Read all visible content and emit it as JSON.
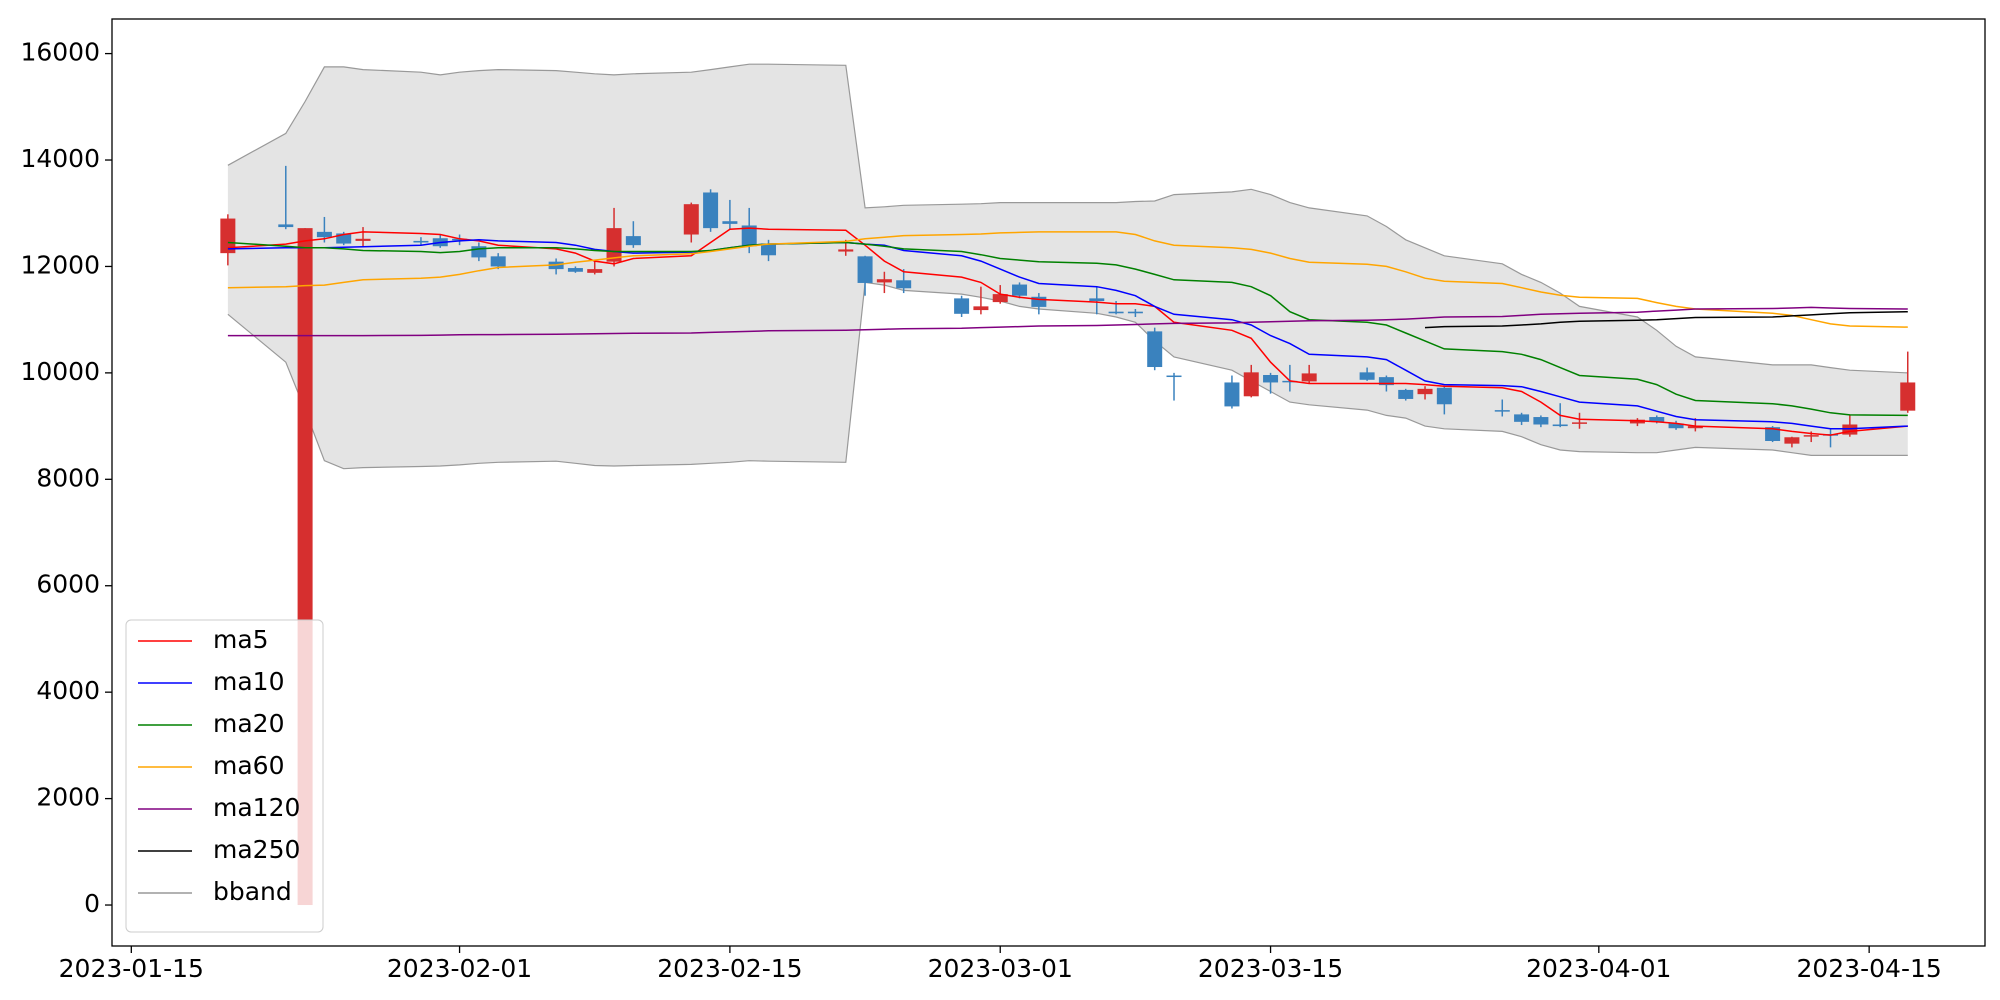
{
  "chart_data": {
    "type": "candlestick",
    "x": [
      "2023-01-20",
      "2023-01-23",
      "2023-01-24",
      "2023-01-25",
      "2023-01-26",
      "2023-01-27",
      "2023-01-30",
      "2023-01-31",
      "2023-02-01",
      "2023-02-02",
      "2023-02-03",
      "2023-02-06",
      "2023-02-07",
      "2023-02-08",
      "2023-02-09",
      "2023-02-10",
      "2023-02-13",
      "2023-02-14",
      "2023-02-15",
      "2023-02-16",
      "2023-02-17",
      "2023-02-21",
      "2023-02-22",
      "2023-02-23",
      "2023-02-24",
      "2023-02-27",
      "2023-02-28",
      "2023-03-01",
      "2023-03-02",
      "2023-03-03",
      "2023-03-06",
      "2023-03-07",
      "2023-03-08",
      "2023-03-09",
      "2023-03-10",
      "2023-03-13",
      "2023-03-14",
      "2023-03-15",
      "2023-03-16",
      "2023-03-17",
      "2023-03-20",
      "2023-03-21",
      "2023-03-22",
      "2023-03-23",
      "2023-03-24",
      "2023-03-27",
      "2023-03-28",
      "2023-03-29",
      "2023-03-30",
      "2023-03-31",
      "2023-04-03",
      "2023-04-04",
      "2023-04-05",
      "2023-04-06",
      "2023-04-10",
      "2023-04-11",
      "2023-04-12",
      "2023-04-13",
      "2023-04-14",
      "2023-04-17"
    ],
    "open": [
      12250,
      12790,
      0,
      12650,
      12620,
      12480,
      12480,
      12530,
      12520,
      12380,
      12190,
      12090,
      11970,
      11880,
      12090,
      12570,
      12600,
      13390,
      12850,
      12770,
      12430,
      12280,
      12190,
      11700,
      11740,
      11400,
      11180,
      11330,
      11660,
      11430,
      11400,
      11150,
      11150,
      10780,
      9950,
      9820,
      9560,
      9960,
      9850,
      9840,
      10010,
      9920,
      9680,
      9600,
      9720,
      9300,
      9220,
      9170,
      9030,
      9050,
      9050,
      9170,
      9050,
      8960,
      8980,
      8670,
      8810,
      8850,
      8840,
      9290
    ],
    "high": [
      12980,
      13890,
      12720,
      12930,
      12650,
      12740,
      12550,
      12600,
      12600,
      12450,
      12250,
      12150,
      12000,
      12100,
      13100,
      12850,
      13200,
      13450,
      13250,
      13100,
      12500,
      12500,
      12200,
      11900,
      11950,
      11450,
      11620,
      11650,
      11700,
      11500,
      11620,
      11350,
      11200,
      10850,
      10000,
      9950,
      10150,
      10000,
      10150,
      10150,
      10100,
      9950,
      9700,
      9750,
      9750,
      9500,
      9250,
      9200,
      9430,
      9250,
      9150,
      9200,
      9100,
      9150,
      9000,
      8800,
      8900,
      8950,
      9200,
      10400
    ],
    "low": [
      12020,
      12700,
      0,
      12450,
      12400,
      12380,
      12400,
      12350,
      12400,
      12100,
      11950,
      11850,
      11880,
      11850,
      12000,
      12350,
      12450,
      12650,
      12700,
      12250,
      12100,
      12200,
      11450,
      11500,
      11500,
      11050,
      11100,
      11300,
      11400,
      11100,
      11100,
      11100,
      11050,
      10050,
      9480,
      9330,
      9540,
      9610,
      9650,
      9800,
      9850,
      9650,
      9480,
      9500,
      9220,
      9180,
      9020,
      8980,
      8980,
      8950,
      9000,
      9050,
      8930,
      8900,
      8700,
      8600,
      8700,
      8600,
      8800,
      9250
    ],
    "close": [
      12900,
      12740,
      12720,
      12550,
      12430,
      12520,
      12450,
      12380,
      12490,
      12170,
      12000,
      11950,
      11900,
      11950,
      12720,
      12400,
      13170,
      12720,
      12800,
      12380,
      12210,
      12320,
      11690,
      11760,
      11590,
      11110,
      11250,
      11480,
      11450,
      11240,
      11350,
      11120,
      11120,
      10110,
      9930,
      9370,
      10010,
      9820,
      9830,
      9990,
      9870,
      9770,
      9510,
      9700,
      9410,
      9280,
      9080,
      9030,
      9000,
      9070,
      9120,
      9080,
      8960,
      9000,
      8720,
      8790,
      8830,
      8820,
      9030,
      9820
    ],
    "up_color": "#d62f2f",
    "down_color": "#3a82be",
    "series": [
      {
        "name": "ma5",
        "color": "#ff0000",
        "values": [
          12350,
          12420,
          12480,
          12520,
          12600,
          12650,
          12620,
          12600,
          12520,
          12480,
          12400,
          12330,
          12250,
          12100,
          12050,
          12150,
          12200,
          12450,
          12700,
          12720,
          12700,
          12680,
          12400,
          12100,
          11900,
          11800,
          11700,
          11480,
          11420,
          11380,
          11330,
          11300,
          11300,
          11250,
          10950,
          10800,
          10650,
          10200,
          9850,
          9800,
          9800,
          9800,
          9800,
          9780,
          9750,
          9720,
          9650,
          9450,
          9200,
          9130,
          9100,
          9080,
          9050,
          9000,
          8950,
          8900,
          8860,
          8830,
          8900,
          9000
        ]
      },
      {
        "name": "ma10",
        "color": "#0000ff",
        "values": [
          12330,
          12350,
          12350,
          12350,
          12360,
          12370,
          12400,
          12450,
          12480,
          12500,
          12480,
          12450,
          12400,
          12320,
          12280,
          12250,
          12270,
          12300,
          12350,
          12400,
          12420,
          12450,
          12420,
          12400,
          12300,
          12200,
          12100,
          11950,
          11800,
          11680,
          11620,
          11550,
          11450,
          11250,
          11100,
          11000,
          10900,
          10700,
          10550,
          10350,
          10300,
          10250,
          10050,
          9850,
          9780,
          9760,
          9740,
          9650,
          9550,
          9450,
          9380,
          9280,
          9180,
          9120,
          9080,
          9050,
          9000,
          8950,
          8950,
          9000
        ]
      },
      {
        "name": "ma20",
        "color": "#008000",
        "values": [
          12450,
          12380,
          12350,
          12350,
          12330,
          12300,
          12280,
          12260,
          12280,
          12330,
          12350,
          12350,
          12330,
          12300,
          12280,
          12280,
          12280,
          12300,
          12350,
          12400,
          12420,
          12450,
          12420,
          12380,
          12330,
          12280,
          12220,
          12150,
          12120,
          12090,
          12060,
          12030,
          11950,
          11850,
          11750,
          11700,
          11620,
          11450,
          11150,
          11000,
          10950,
          10900,
          10750,
          10600,
          10450,
          10400,
          10350,
          10250,
          10100,
          9950,
          9880,
          9780,
          9600,
          9480,
          9420,
          9380,
          9320,
          9250,
          9210,
          9200
        ]
      },
      {
        "name": "ma60",
        "color": "#ffa500",
        "values": [
          11600,
          11620,
          11640,
          11650,
          11700,
          11750,
          11780,
          11800,
          11850,
          11920,
          11980,
          12030,
          12080,
          12120,
          12160,
          12200,
          12240,
          12280,
          12330,
          12380,
          12420,
          12470,
          12520,
          12550,
          12580,
          12600,
          12610,
          12630,
          12640,
          12650,
          12650,
          12650,
          12600,
          12480,
          12400,
          12350,
          12320,
          12250,
          12150,
          12080,
          12040,
          12000,
          11900,
          11780,
          11720,
          11680,
          11600,
          11520,
          11460,
          11420,
          11400,
          11320,
          11250,
          11200,
          11120,
          11080,
          11000,
          10920,
          10880,
          10860
        ]
      },
      {
        "name": "ma120",
        "color": "#800080",
        "values": [
          10700,
          10700,
          10700,
          10700,
          10700,
          10700,
          10705,
          10710,
          10715,
          10720,
          10720,
          10725,
          10730,
          10735,
          10740,
          10745,
          10750,
          10760,
          10770,
          10780,
          10790,
          10800,
          10810,
          10820,
          10830,
          10840,
          10850,
          10860,
          10870,
          10880,
          10890,
          10900,
          10910,
          10920,
          10930,
          10940,
          10950,
          10960,
          10970,
          10980,
          10990,
          11000,
          11010,
          11030,
          11050,
          11060,
          11080,
          11100,
          11110,
          11120,
          11140,
          11160,
          11180,
          11200,
          11210,
          11220,
          11230,
          11220,
          11210,
          11200
        ]
      },
      {
        "name": "ma250",
        "color": "#000000",
        "values": [
          null,
          null,
          null,
          null,
          null,
          null,
          null,
          null,
          null,
          null,
          null,
          null,
          null,
          null,
          null,
          null,
          null,
          null,
          null,
          null,
          null,
          null,
          null,
          null,
          null,
          null,
          null,
          null,
          null,
          null,
          null,
          null,
          null,
          null,
          null,
          null,
          null,
          null,
          null,
          null,
          null,
          null,
          null,
          10850,
          10870,
          10880,
          10900,
          10920,
          10950,
          10970,
          10990,
          11000,
          11020,
          11040,
          11050,
          11070,
          11090,
          11110,
          11130,
          11150
        ]
      },
      {
        "name": "bband",
        "color": "#999999",
        "fill": "#e4e4e4",
        "upper": [
          13900,
          14500,
          15100,
          15750,
          15750,
          15700,
          15650,
          15600,
          15650,
          15680,
          15700,
          15680,
          15650,
          15620,
          15600,
          15620,
          15650,
          15700,
          15750,
          15800,
          15800,
          15780,
          13100,
          13120,
          13150,
          13170,
          13180,
          13200,
          13200,
          13200,
          13200,
          13200,
          13220,
          13230,
          13350,
          13400,
          13450,
          13350,
          13200,
          13100,
          12950,
          12750,
          12500,
          12350,
          12200,
          12050,
          11850,
          11700,
          11500,
          11250,
          11050,
          10800,
          10500,
          10300,
          10150,
          10150,
          10150,
          10100,
          10050,
          10000
        ],
        "lower": [
          11100,
          10200,
          9300,
          8350,
          8200,
          8220,
          8240,
          8250,
          8270,
          8300,
          8320,
          8340,
          8300,
          8260,
          8250,
          8260,
          8280,
          8300,
          8320,
          8350,
          8340,
          8320,
          11700,
          11650,
          11550,
          11480,
          11420,
          11350,
          11250,
          11200,
          11120,
          11050,
          10950,
          10600,
          10300,
          10050,
          9850,
          9650,
          9450,
          9400,
          9300,
          9200,
          9150,
          9000,
          8950,
          8900,
          8800,
          8650,
          8550,
          8520,
          8500,
          8500,
          8550,
          8600,
          8550,
          8500,
          8450,
          8450,
          8450,
          8450
        ]
      }
    ],
    "xlim": [
      "2023-01-14",
      "2023-04-21"
    ],
    "xticks": [
      "2023-01-15",
      "2023-02-01",
      "2023-02-15",
      "2023-03-01",
      "2023-03-15",
      "2023-04-01",
      "2023-04-15"
    ],
    "ylim": [
      -770,
      16650
    ],
    "yticks": [
      0,
      2000,
      4000,
      6000,
      8000,
      10000,
      12000,
      14000,
      16000
    ],
    "legend": "lower left",
    "grid": false
  }
}
